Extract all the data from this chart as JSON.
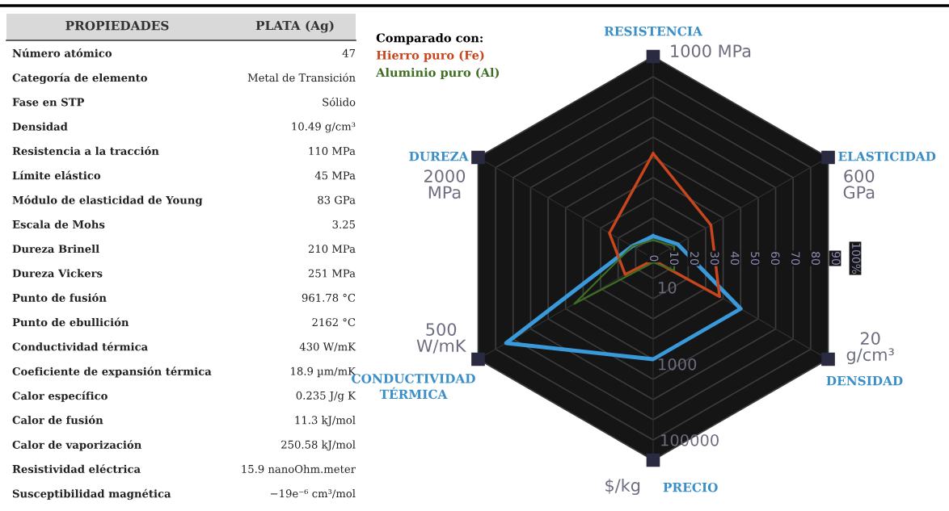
{
  "chart_data": [
    {
      "type": "other",
      "annotations": [
        "PROPIEDADES",
        "PLATA (Ag)",
        "Número atómico",
        "47",
        "Categoría de elemento",
        "Metal de Transición",
        "Fase en STP",
        "Sólido",
        "Densidad",
        "10.49 g/cm³",
        "Resistencia a la tracción",
        "110 MPa",
        "Límite elástico",
        "45 MPa",
        "Módulo de elasticidad de Young",
        "83 GPa",
        "Escala de Mohs",
        "3.25",
        "Dureza Brinell",
        "210 MPa",
        "Dureza Vickers",
        "251 MPa",
        "Punto de fusión",
        "961.78 °C",
        "Punto de ebullición",
        "2162 °C",
        "Conductividad térmica",
        "430 W/mK",
        "Coeficiente de expansión térmica",
        "18.9 µm/mK",
        "Calor específico",
        "0.235 J/g K",
        "Calor de fusión",
        "11.3 kJ/mol",
        "Calor de vaporización",
        "250.58 kJ/mol",
        "Resistividad eléctrica",
        "15.9 nanoOhm.meter",
        "Susceptibilidad magnética",
        "−19e⁻⁶ cm³/mol"
      ]
    },
    {
      "type": "radar",
      "categories": [
        "RESISTENCIA",
        "ELASTICIDAD",
        "DENSIDAD",
        "PRECIO",
        "CONDUCTIVIDAD\nTÉRMICA",
        "DUREZA"
      ],
      "series": [
        {
          "color": "#3a9ad9",
          "values": [
            11,
            14,
            50,
            50,
            84,
            12
          ]
        },
        {
          "name": "Hierro puro (Fe)",
          "color": "#c8461e",
          "values": [
            52,
            33,
            38,
            1,
            16,
            25
          ]
        },
        {
          "name": "Aluminio puro (Al)",
          "color": "#3f6e22",
          "values": [
            9,
            12,
            12,
            2,
            45,
            12
          ]
        }
      ],
      "ylim": [
        0,
        100
      ],
      "yticks": [
        0,
        10,
        20,
        30,
        40,
        50,
        60,
        70,
        80,
        90,
        {
          "value": 100,
          "label": "100%"
        }
      ],
      "grid": true,
      "legend": "top left",
      "legend_title": "Comparado con:",
      "annotations": [
        "1000 MPa",
        "600\nGPa",
        "20\ng/cm³",
        "$/kg",
        "500\nW/mK",
        "2000\nMPa",
        "10",
        "1000",
        "100000"
      ]
    }
  ]
}
